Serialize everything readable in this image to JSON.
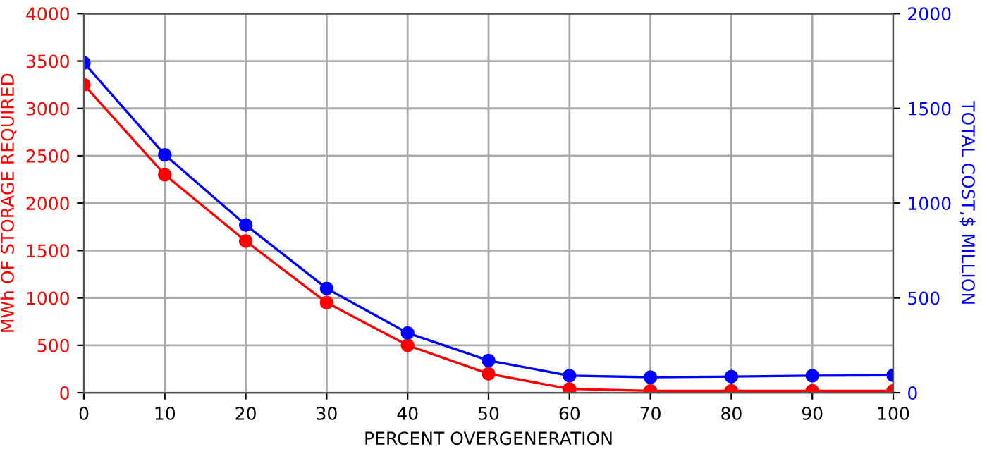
{
  "chart_data": {
    "type": "line",
    "xlabel": "PERCENT OVERGENERATION",
    "ylabel": "MWh OF STORAGE REQUIRED",
    "y2label": "TOTAL COST,$ MILLION",
    "x": [
      0,
      10,
      20,
      30,
      40,
      50,
      60,
      70,
      80,
      90,
      100
    ],
    "series": [
      {
        "color": "#ff0000",
        "values": [
          3250,
          2300,
          1600,
          950,
          500,
          200,
          40,
          20,
          20,
          20,
          20
        ]
      },
      {
        "color": "#0000ff",
        "axis": "y2",
        "values": [
          1740,
          1255,
          885,
          550,
          315,
          170,
          90,
          82,
          85,
          90,
          92
        ]
      }
    ],
    "xlim": [
      0,
      100
    ],
    "xticks": [
      0,
      10,
      20,
      30,
      40,
      50,
      60,
      70,
      80,
      90,
      100
    ],
    "ylim": [
      0,
      4000
    ],
    "yticks": [
      0,
      500,
      1000,
      1500,
      2000,
      2500,
      3000,
      3500,
      4000
    ],
    "y2lim": [
      0,
      2000
    ],
    "y2ticks": [
      0,
      500,
      1000,
      1500,
      2000
    ],
    "grid": true,
    "marker": "circle",
    "line_style": "solid"
  }
}
